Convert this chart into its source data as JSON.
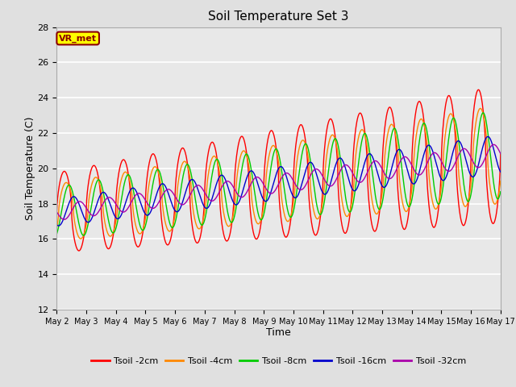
{
  "title": "Soil Temperature Set 3",
  "xlabel": "Time",
  "ylabel": "Soil Temperature (C)",
  "ylim": [
    12,
    28
  ],
  "xlim_start": 0,
  "xlim_end": 15,
  "x_tick_labels": [
    "May 2",
    "May 3",
    "May 4",
    "May 5",
    "May 6",
    "May 7",
    "May 8",
    "May 9",
    "May 10",
    "May 11",
    "May 12",
    "May 13",
    "May 14",
    "May 15",
    "May 16",
    "May 17"
  ],
  "yticks": [
    12,
    14,
    16,
    18,
    20,
    22,
    24,
    26,
    28
  ],
  "bg_color": "#e0e0e0",
  "plot_bg_color": "#e8e8e8",
  "grid_color": "#ffffff",
  "series": [
    {
      "label": "Tsoil -2cm",
      "color": "#ff0000",
      "depth": 2
    },
    {
      "label": "Tsoil -4cm",
      "color": "#ff8800",
      "depth": 4
    },
    {
      "label": "Tsoil -8cm",
      "color": "#00cc00",
      "depth": 8
    },
    {
      "label": "Tsoil -16cm",
      "color": "#0000cc",
      "depth": 16
    },
    {
      "label": "Tsoil -32cm",
      "color": "#aa00aa",
      "depth": 32
    }
  ],
  "annotation_text": "VR_met",
  "annotation_bg": "#ffff00",
  "annotation_border": "#8b0000",
  "title_fontsize": 11,
  "axis_label_fontsize": 9,
  "tick_fontsize": 8,
  "legend_fontsize": 8
}
